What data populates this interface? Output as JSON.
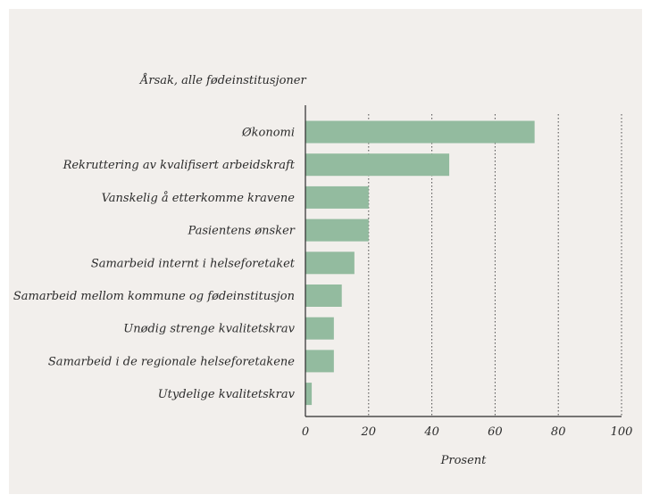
{
  "chart_data": {
    "type": "bar",
    "orientation": "horizontal",
    "title": "Årsak, alle fødeinstitusjoner",
    "xlabel": "Prosent",
    "ylabel": "",
    "xlim": [
      0,
      100
    ],
    "xticks": [
      "0",
      "20",
      "40",
      "60",
      "80",
      "100"
    ],
    "grid": "vertical dotted",
    "bar_color": "#93bb9f",
    "categories": [
      "Økonomi",
      "Rekruttering av kvalifisert arbeidskraft",
      "Vanskelig å etterkomme kravene",
      "Pasientens ønsker",
      "Samarbeid internt i helseforetaket",
      "Samarbeid mellom kommune og fødeinstitusjon",
      "Unødig strenge kvalitetskrav",
      "Samarbeid i de regionale helseforetakene",
      "Utydelige kvalitetskrav"
    ],
    "values": [
      72.5,
      45.5,
      20,
      20,
      15.5,
      11.5,
      9,
      9,
      2
    ]
  }
}
